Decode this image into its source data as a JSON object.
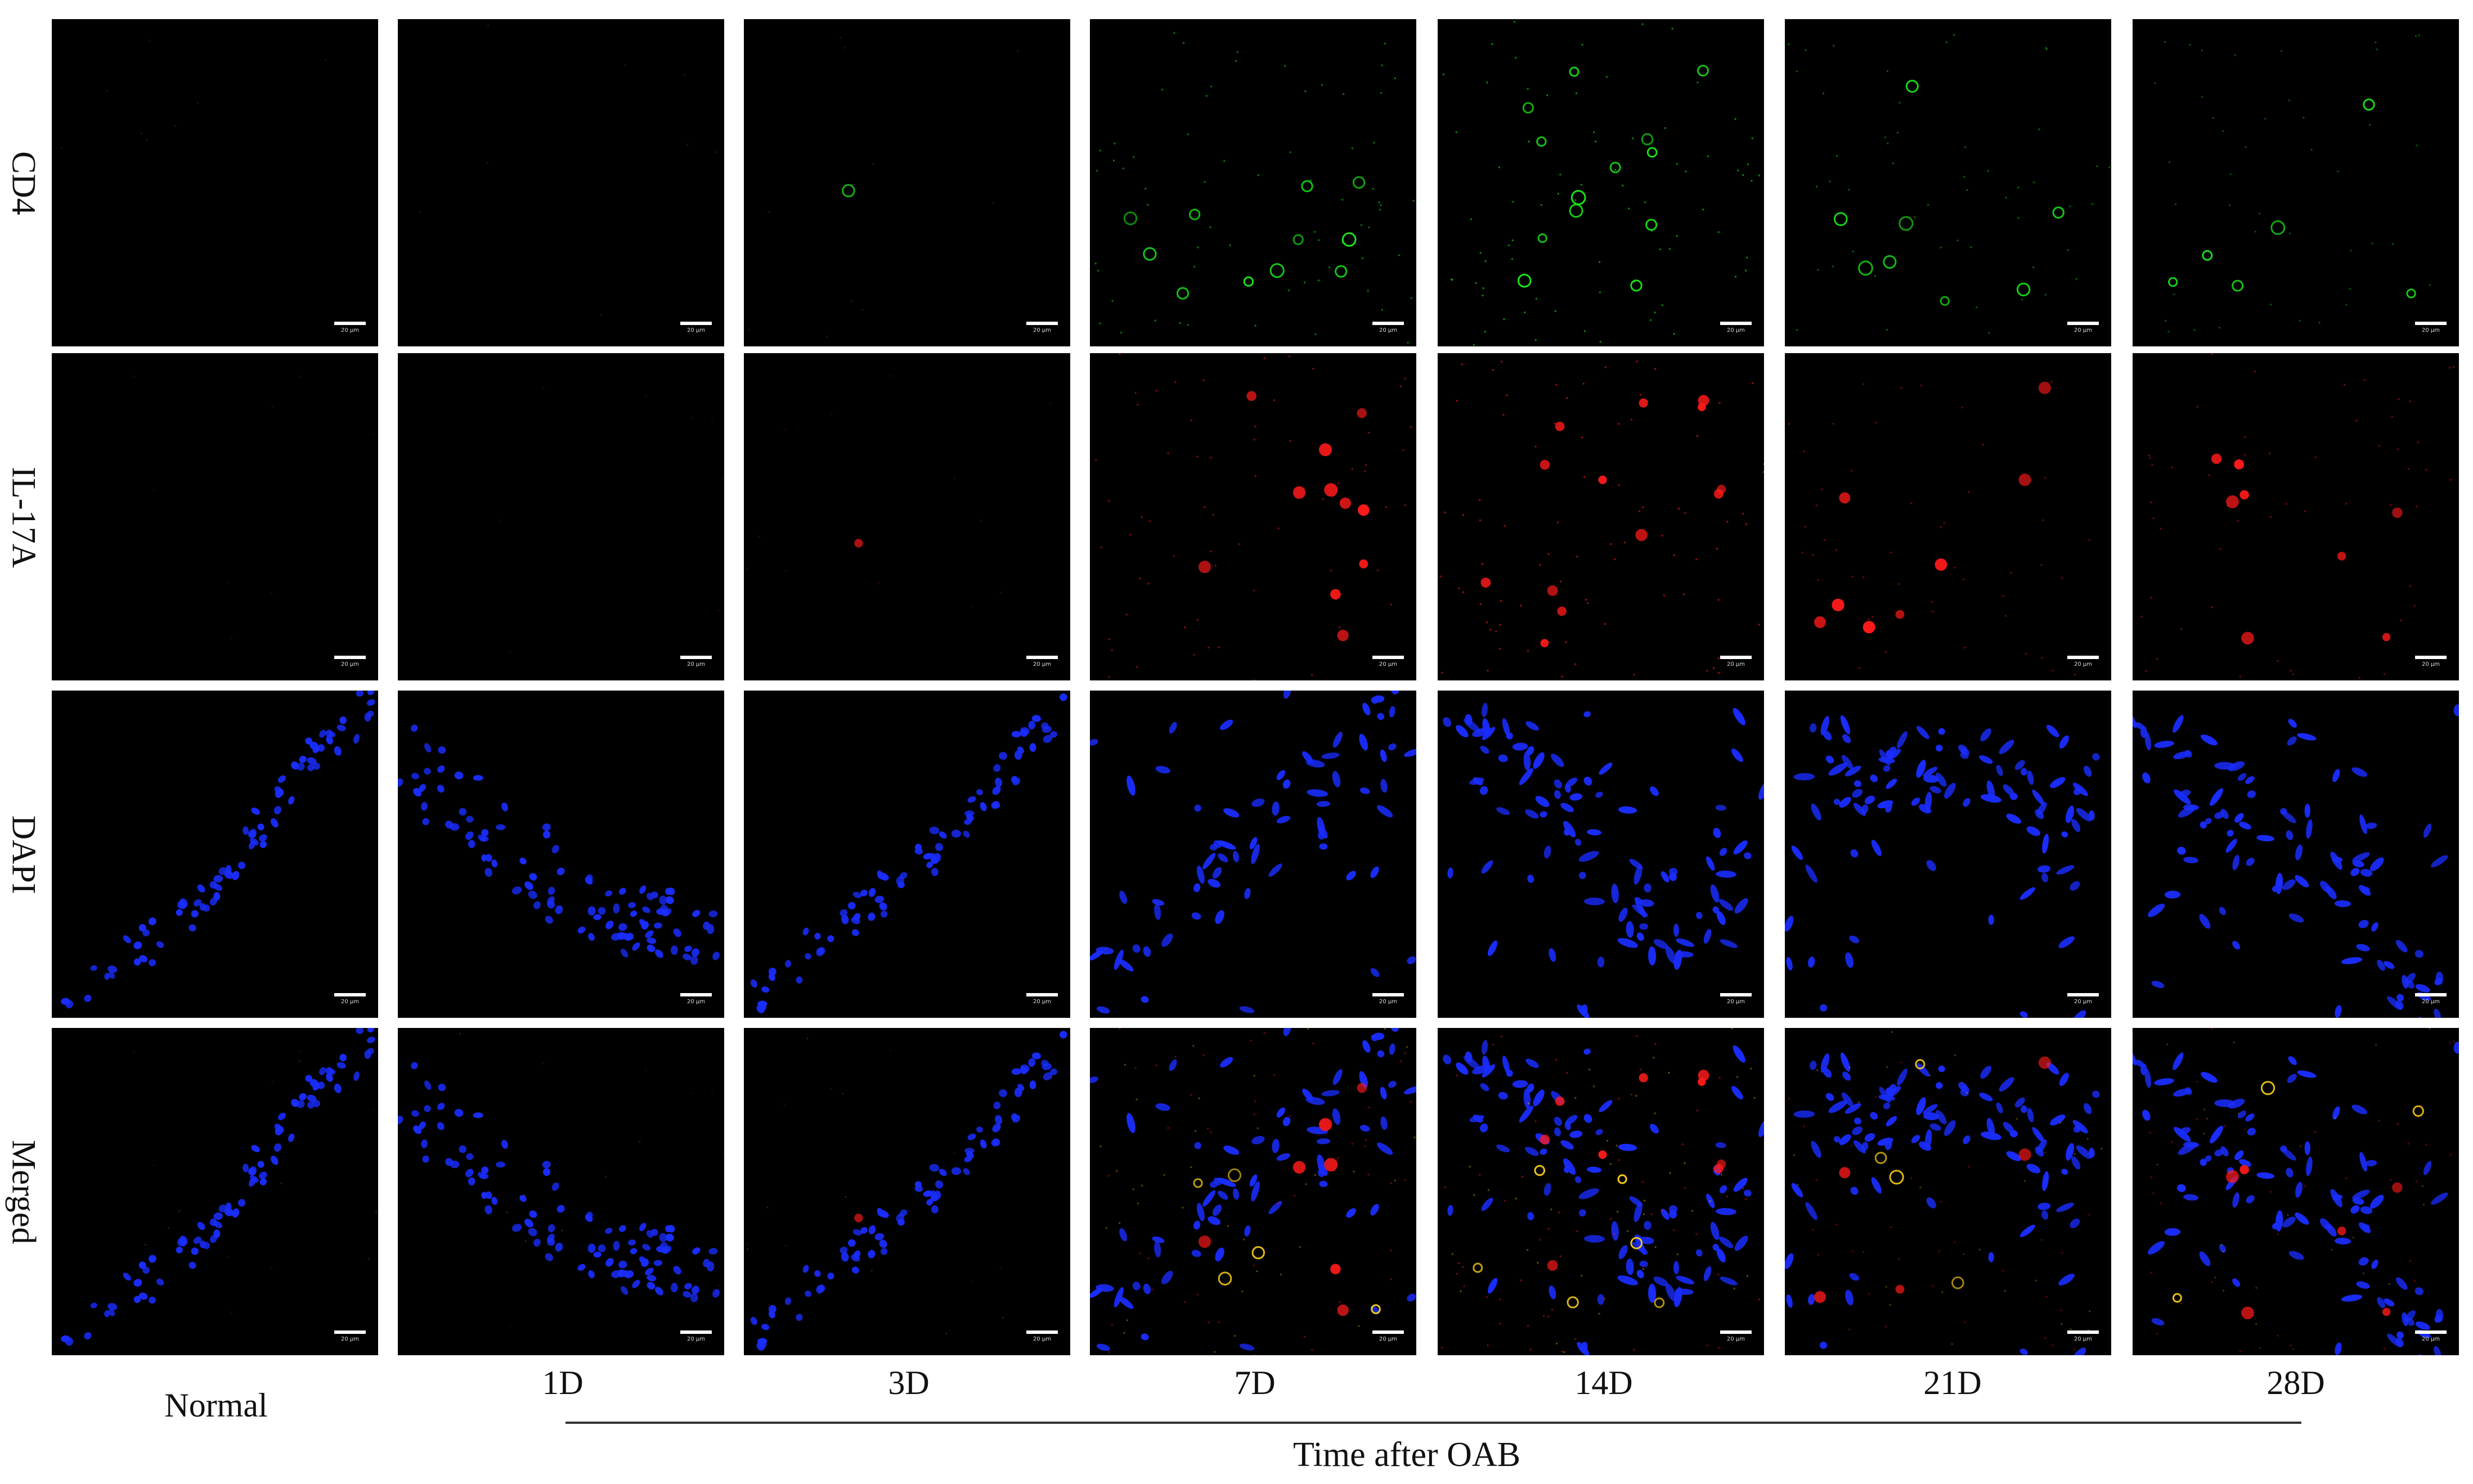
{
  "rows": [
    "CD4",
    "IL-17A",
    "DAPI",
    "Merged"
  ],
  "columns": [
    "Normal",
    "1D",
    "3D",
    "7D",
    "14D",
    "21D",
    "28D"
  ],
  "axis_title": "Time after OAB",
  "scale_bar_text": "20 μm",
  "colors": {
    "background": "#000000",
    "cd4": "#19e619",
    "il17a": "#ff1a1a",
    "dapi": "#1a2dff",
    "merged_overlap": "#ffd21a"
  },
  "signal_levels": {
    "CD4": [
      0.02,
      0.03,
      0.05,
      0.75,
      0.9,
      0.55,
      0.45
    ],
    "IL-17A": [
      0.03,
      0.03,
      0.08,
      0.75,
      0.95,
      0.55,
      0.6
    ]
  }
}
